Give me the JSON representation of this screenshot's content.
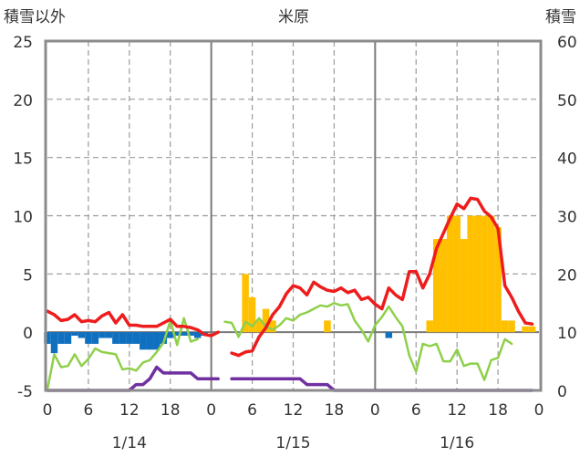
{
  "chart_data": {
    "type": "bar+line",
    "title": "米原",
    "y_left_label": "積雪以外",
    "y_right_label": "積雪",
    "y_left_range": [
      -5,
      25
    ],
    "y_right_range": [
      0,
      60
    ],
    "y_left_ticks": [
      "25",
      "20",
      "15",
      "10",
      "5",
      "0",
      "-5"
    ],
    "y_right_ticks": [
      "60",
      "50",
      "40",
      "30",
      "20",
      "10",
      "0"
    ],
    "x_ticks": [
      "0",
      "6",
      "12",
      "18",
      "0",
      "6",
      "12",
      "18",
      "0",
      "6",
      "12",
      "18",
      "0"
    ],
    "x_range_hours": [
      0,
      72
    ],
    "date_labels": [
      "1/14",
      "1/15",
      "1/16"
    ],
    "colors": {
      "red_series": "#ee1c1c",
      "green_series": "#8ed04a",
      "purple_series": "#7030a0",
      "orange_bars": "#ffc000",
      "blue_bars": "#1070c0"
    },
    "red_series": [
      [
        0,
        1.8
      ],
      [
        1,
        1.5
      ],
      [
        2,
        1.0
      ],
      [
        3,
        1.1
      ],
      [
        4,
        1.5
      ],
      [
        5,
        0.9
      ],
      [
        6,
        1.0
      ],
      [
        7,
        0.9
      ],
      [
        8,
        1.4
      ],
      [
        9,
        1.7
      ],
      [
        10,
        0.8
      ],
      [
        11,
        1.5
      ],
      [
        12,
        0.6
      ],
      [
        13,
        0.6
      ],
      [
        14,
        0.5
      ],
      [
        15,
        0.5
      ],
      [
        16,
        0.5
      ],
      [
        17,
        0.8
      ],
      [
        18,
        1.1
      ],
      [
        19,
        0.5
      ],
      [
        20,
        0.5
      ],
      [
        21,
        0.4
      ],
      [
        22,
        0.2
      ],
      [
        23,
        -0.2
      ],
      [
        24,
        -0.3
      ],
      [
        25,
        0.0
      ],
      null,
      [
        27,
        -1.8
      ],
      [
        28,
        -2.0
      ],
      [
        29,
        -1.7
      ],
      [
        30,
        -1.6
      ],
      [
        31,
        -0.4
      ],
      [
        32,
        0.4
      ],
      [
        33,
        1.5
      ],
      [
        34,
        2.2
      ],
      [
        35,
        3.3
      ],
      [
        36,
        4.0
      ],
      [
        37,
        3.8
      ],
      [
        38,
        3.2
      ],
      [
        39,
        4.3
      ],
      [
        40,
        3.9
      ],
      [
        41,
        3.6
      ],
      [
        42,
        3.5
      ],
      [
        43,
        3.8
      ],
      [
        44,
        3.4
      ],
      [
        45,
        3.6
      ],
      [
        46,
        2.8
      ],
      [
        47,
        3.0
      ],
      [
        48,
        2.4
      ],
      [
        49,
        2.0
      ],
      [
        50,
        3.8
      ],
      [
        51,
        3.2
      ],
      [
        52,
        2.8
      ],
      [
        53,
        5.2
      ],
      [
        54,
        5.2
      ],
      [
        55,
        3.8
      ],
      [
        56,
        5.0
      ],
      [
        57,
        7.2
      ],
      [
        58,
        8.5
      ],
      [
        59,
        9.8
      ],
      [
        60,
        11.0
      ],
      [
        61,
        10.6
      ],
      [
        62,
        11.5
      ],
      [
        63,
        11.4
      ],
      [
        64,
        10.4
      ],
      [
        65,
        9.9
      ],
      [
        66,
        8.9
      ],
      [
        67,
        4.0
      ],
      [
        68,
        3.0
      ],
      [
        69,
        1.8
      ],
      [
        70,
        0.8
      ],
      [
        71,
        0.7
      ]
    ],
    "green_series": [
      [
        0,
        -4.9
      ],
      [
        1,
        -1.9
      ],
      [
        2,
        -3.0
      ],
      [
        3,
        -2.9
      ],
      [
        4,
        -1.9
      ],
      [
        5,
        -2.9
      ],
      [
        6,
        -2.3
      ],
      [
        7,
        -1.4
      ],
      [
        8,
        -1.7
      ],
      [
        9,
        -1.8
      ],
      [
        10,
        -1.9
      ],
      [
        11,
        -3.2
      ],
      [
        12,
        -3.1
      ],
      [
        13,
        -3.3
      ],
      [
        14,
        -2.6
      ],
      [
        15,
        -2.4
      ],
      [
        16,
        -1.7
      ],
      [
        17,
        -0.9
      ],
      [
        18,
        1.0
      ],
      [
        19,
        -1.1
      ],
      [
        20,
        1.2
      ],
      [
        21,
        -0.8
      ],
      [
        22,
        -0.6
      ],
      null,
      [
        26,
        0.9
      ],
      [
        27,
        0.8
      ],
      [
        28,
        -0.4
      ],
      [
        29,
        0.9
      ],
      [
        30,
        0.5
      ],
      [
        31,
        1.2
      ],
      [
        32,
        0.5
      ],
      [
        33,
        0.2
      ],
      [
        34,
        0.6
      ],
      [
        35,
        1.2
      ],
      [
        36,
        1.0
      ],
      [
        37,
        1.5
      ],
      [
        38,
        1.7
      ],
      [
        39,
        2.0
      ],
      [
        40,
        2.3
      ],
      [
        41,
        2.2
      ],
      [
        42,
        2.5
      ],
      [
        43,
        2.3
      ],
      [
        44,
        2.4
      ],
      [
        45,
        1.0
      ],
      [
        46,
        0.2
      ],
      [
        47,
        -0.8
      ],
      [
        48,
        0.6
      ],
      [
        49,
        1.3
      ],
      [
        50,
        2.2
      ],
      [
        51,
        1.3
      ],
      [
        52,
        0.5
      ],
      [
        53,
        -2.0
      ],
      [
        54,
        -3.4
      ],
      [
        55,
        -1.0
      ],
      [
        56,
        -1.2
      ],
      [
        57,
        -1.0
      ],
      [
        58,
        -2.5
      ],
      [
        59,
        -2.5
      ],
      [
        60,
        -1.5
      ],
      [
        61,
        -2.9
      ],
      [
        62,
        -2.7
      ],
      [
        63,
        -2.7
      ],
      [
        64,
        -4.1
      ],
      [
        65,
        -2.4
      ],
      [
        66,
        -2.2
      ],
      [
        67,
        -0.6
      ],
      [
        68,
        -1.0
      ]
    ],
    "purple_series": [
      [
        0,
        -5.0
      ],
      [
        1,
        -5.0
      ],
      [
        2,
        -5.0
      ],
      [
        3,
        -5.0
      ],
      [
        4,
        -5.0
      ],
      [
        5,
        -5.0
      ],
      [
        6,
        -5.0
      ],
      [
        7,
        -5.0
      ],
      [
        8,
        -5.0
      ],
      [
        9,
        -5.0
      ],
      [
        10,
        -5.0
      ],
      [
        11,
        -5.0
      ],
      [
        12,
        -5.0
      ],
      [
        13,
        -4.5
      ],
      [
        14,
        -4.5
      ],
      [
        15,
        -4.0
      ],
      [
        16,
        -3.0
      ],
      [
        17,
        -3.5
      ],
      [
        18,
        -3.5
      ],
      [
        19,
        -3.5
      ],
      [
        20,
        -3.5
      ],
      [
        21,
        -3.5
      ],
      [
        22,
        -4.0
      ],
      [
        23,
        -4.0
      ],
      [
        24,
        -4.0
      ],
      [
        25,
        -4.0
      ],
      null,
      [
        27,
        -4.0
      ],
      [
        28,
        -4.0
      ],
      [
        29,
        -4.0
      ],
      [
        30,
        -4.0
      ],
      [
        31,
        -4.0
      ],
      [
        32,
        -4.0
      ],
      [
        33,
        -4.0
      ],
      [
        34,
        -4.0
      ],
      [
        35,
        -4.0
      ],
      [
        36,
        -4.0
      ],
      [
        37,
        -4.0
      ],
      [
        38,
        -4.5
      ],
      [
        39,
        -4.5
      ],
      [
        40,
        -4.5
      ],
      [
        41,
        -4.5
      ],
      [
        42,
        -5.0
      ],
      [
        43,
        -5.0
      ],
      [
        44,
        -5.0
      ],
      [
        45,
        -5.0
      ],
      [
        46,
        -5.0
      ],
      [
        47,
        -5.0
      ],
      [
        48,
        -5.0
      ],
      [
        49,
        -5.0
      ],
      [
        50,
        -5.0
      ],
      [
        51,
        -5.0
      ],
      [
        52,
        -5.0
      ],
      [
        53,
        -5.0
      ],
      [
        54,
        -5.0
      ],
      [
        55,
        -5.0
      ],
      [
        56,
        -5.0
      ],
      [
        57,
        -5.0
      ],
      [
        58,
        -5.0
      ],
      [
        59,
        -5.0
      ],
      [
        60,
        -5.0
      ],
      [
        61,
        -5.0
      ],
      [
        62,
        -5.0
      ],
      [
        63,
        -5.0
      ],
      [
        64,
        -5.0
      ],
      [
        65,
        -5.0
      ],
      [
        66,
        -5.0
      ],
      [
        67,
        -5.0
      ],
      [
        68,
        -5.0
      ],
      [
        69,
        -5.0
      ],
      [
        70,
        -5.0
      ],
      [
        71,
        -5.0
      ]
    ],
    "orange_bars": [
      [
        29,
        5.0
      ],
      [
        30,
        3.0
      ],
      [
        31,
        1.0
      ],
      [
        32,
        2.0
      ],
      [
        33,
        1.0
      ],
      [
        41,
        1.0
      ],
      [
        56,
        1.0
      ],
      [
        57,
        8.0
      ],
      [
        58,
        8.0
      ],
      [
        59,
        10.0
      ],
      [
        60,
        10.0
      ],
      [
        61,
        8.0
      ],
      [
        62,
        10.0
      ],
      [
        63,
        10.0
      ],
      [
        64,
        10.0
      ],
      [
        65,
        10.0
      ],
      [
        66,
        9.0
      ],
      [
        67,
        1.0
      ],
      [
        68,
        1.0
      ],
      [
        70,
        0.5
      ],
      [
        71,
        0.5
      ]
    ],
    "blue_bars": [
      [
        0,
        -1.0
      ],
      [
        1,
        -1.8
      ],
      [
        2,
        -1.0
      ],
      [
        3,
        -1.0
      ],
      [
        4,
        -0.3
      ],
      [
        5,
        -0.5
      ],
      [
        6,
        -1.0
      ],
      [
        7,
        -1.0
      ],
      [
        8,
        -0.5
      ],
      [
        9,
        -0.5
      ],
      [
        10,
        -1.0
      ],
      [
        11,
        -1.0
      ],
      [
        12,
        -1.0
      ],
      [
        13,
        -1.0
      ],
      [
        14,
        -1.5
      ],
      [
        15,
        -1.5
      ],
      [
        16,
        -1.5
      ],
      [
        17,
        -1.0
      ],
      [
        18,
        -0.5
      ],
      [
        19,
        -0.3
      ],
      [
        20,
        -0.3
      ],
      [
        21,
        -0.3
      ],
      [
        22,
        -0.5
      ],
      [
        23,
        -0.3
      ],
      [
        50,
        -0.5
      ]
    ]
  }
}
